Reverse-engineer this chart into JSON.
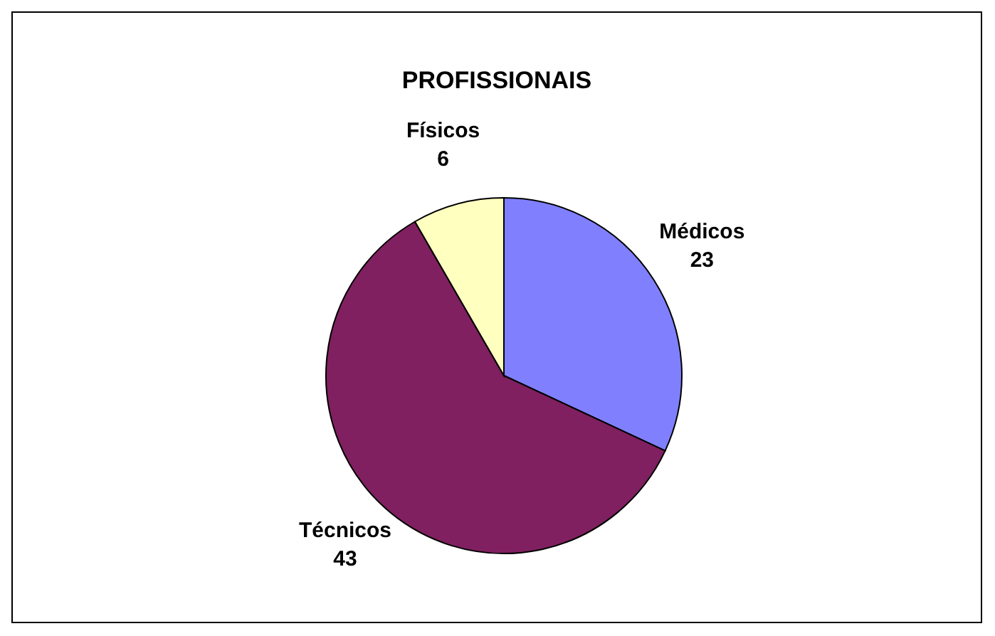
{
  "chart_data": {
    "type": "pie",
    "title": "PROFISSIONAIS",
    "categories": [
      "Médicos",
      "Técnicos",
      "Físicos"
    ],
    "values": [
      23,
      43,
      6
    ],
    "colors": [
      "#8080ff",
      "#802060",
      "#ffffc0"
    ],
    "data_labels": true,
    "legend": false
  }
}
